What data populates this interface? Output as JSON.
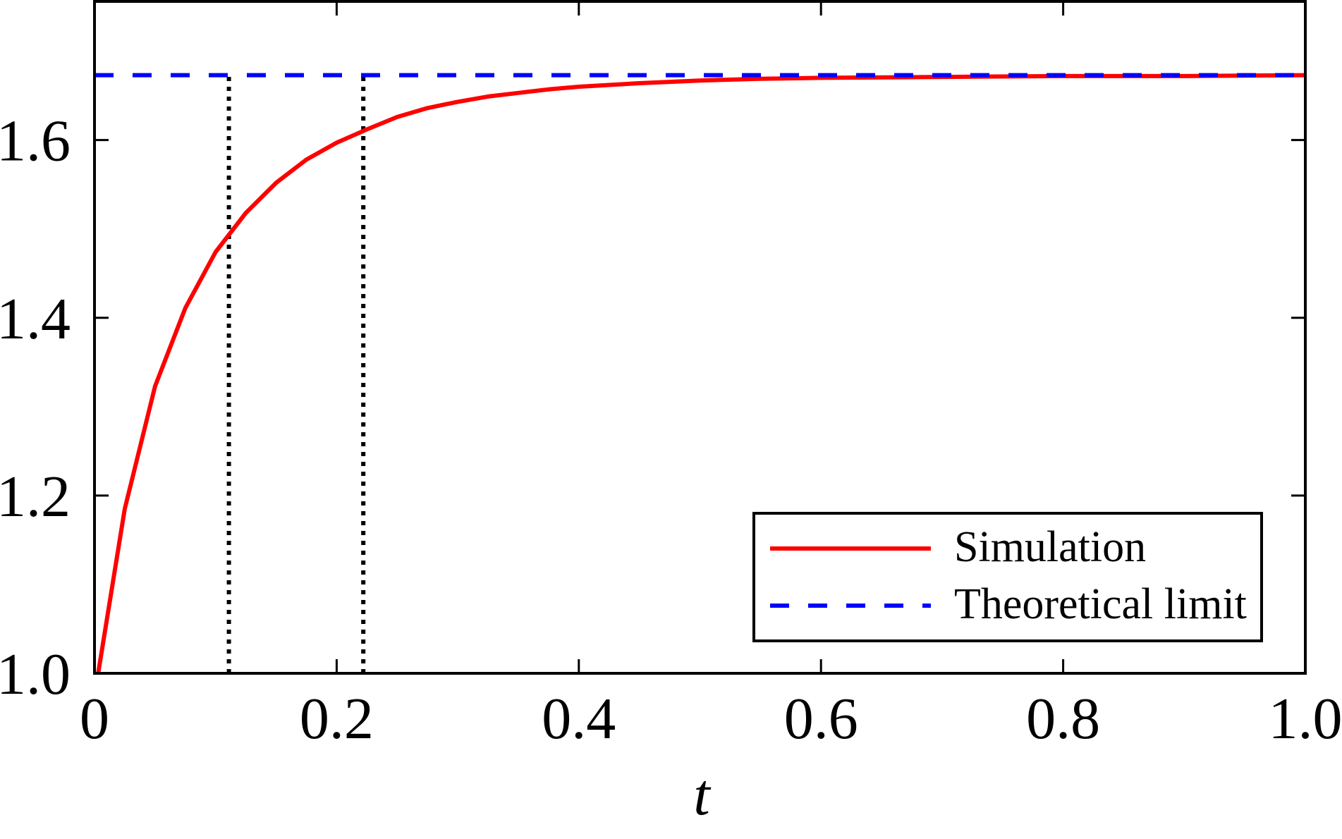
{
  "chart_data": {
    "type": "line",
    "title": "",
    "xlabel": "t",
    "ylabel": "",
    "xlim": [
      0,
      1.0
    ],
    "ylim": [
      1.0,
      1.756
    ],
    "x_ticks": [
      0,
      0.2,
      0.4,
      0.6,
      0.8,
      1.0
    ],
    "x_tick_labels": [
      "0",
      "0.2",
      "0.4",
      "0.6",
      "0.8",
      "1.0"
    ],
    "y_ticks": [
      1.0,
      1.2,
      1.4,
      1.6
    ],
    "y_tick_labels": [
      "1.0",
      "1.2",
      "1.4",
      "1.6"
    ],
    "grid": false,
    "legend_position": "lower right",
    "series": [
      {
        "name": "Simulation",
        "style": "solid",
        "color": "#ff0000",
        "x": [
          0.003,
          0.025,
          0.05,
          0.075,
          0.1,
          0.125,
          0.15,
          0.175,
          0.2,
          0.225,
          0.25,
          0.275,
          0.3,
          0.325,
          0.35,
          0.375,
          0.4,
          0.45,
          0.5,
          0.55,
          0.6,
          0.7,
          0.8,
          0.9,
          1.0
        ],
        "values": [
          1.0,
          1.185,
          1.323,
          1.411,
          1.474,
          1.518,
          1.552,
          1.578,
          1.597,
          1.612,
          1.626,
          1.636,
          1.643,
          1.649,
          1.653,
          1.657,
          1.66,
          1.664,
          1.667,
          1.669,
          1.67,
          1.671,
          1.672,
          1.672,
          1.673
        ]
      },
      {
        "name": "Theoretical limit",
        "style": "dashed",
        "color": "#0000ff",
        "x": [
          0,
          1.0
        ],
        "values": [
          1.673,
          1.673
        ]
      }
    ],
    "annotations": [
      {
        "type": "vertical-dotted-line",
        "x": 0.111,
        "y_from": 1.0,
        "y_to": 1.673,
        "color": "#000000"
      },
      {
        "type": "vertical-dotted-line",
        "x": 0.222,
        "y_from": 1.0,
        "y_to": 1.673,
        "color": "#000000"
      }
    ]
  }
}
